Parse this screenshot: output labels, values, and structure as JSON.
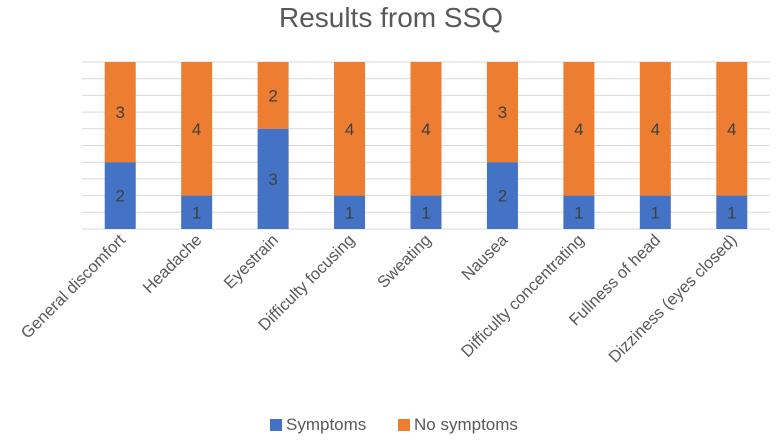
{
  "chart_data": {
    "type": "bar",
    "stacked": true,
    "title": "Results from SSQ",
    "xlabel": "",
    "ylabel": "",
    "ylim": [
      0,
      5
    ],
    "grid": true,
    "legend_position": "bottom-center",
    "categories": [
      "General discomfort",
      "Headache",
      "Eyestrain",
      "Difficulty focusing",
      "Sweating",
      "Nausea",
      "Difficulty concentrating",
      "Fullness of head",
      "Dizziness (eyes closed)"
    ],
    "series": [
      {
        "name": "Symptoms",
        "color": "#4472C4",
        "values": [
          2,
          1,
          3,
          1,
          1,
          2,
          1,
          1,
          1
        ]
      },
      {
        "name": "No symptoms",
        "color": "#ED7D31",
        "values": [
          3,
          4,
          2,
          4,
          4,
          3,
          4,
          4,
          4
        ]
      }
    ]
  }
}
